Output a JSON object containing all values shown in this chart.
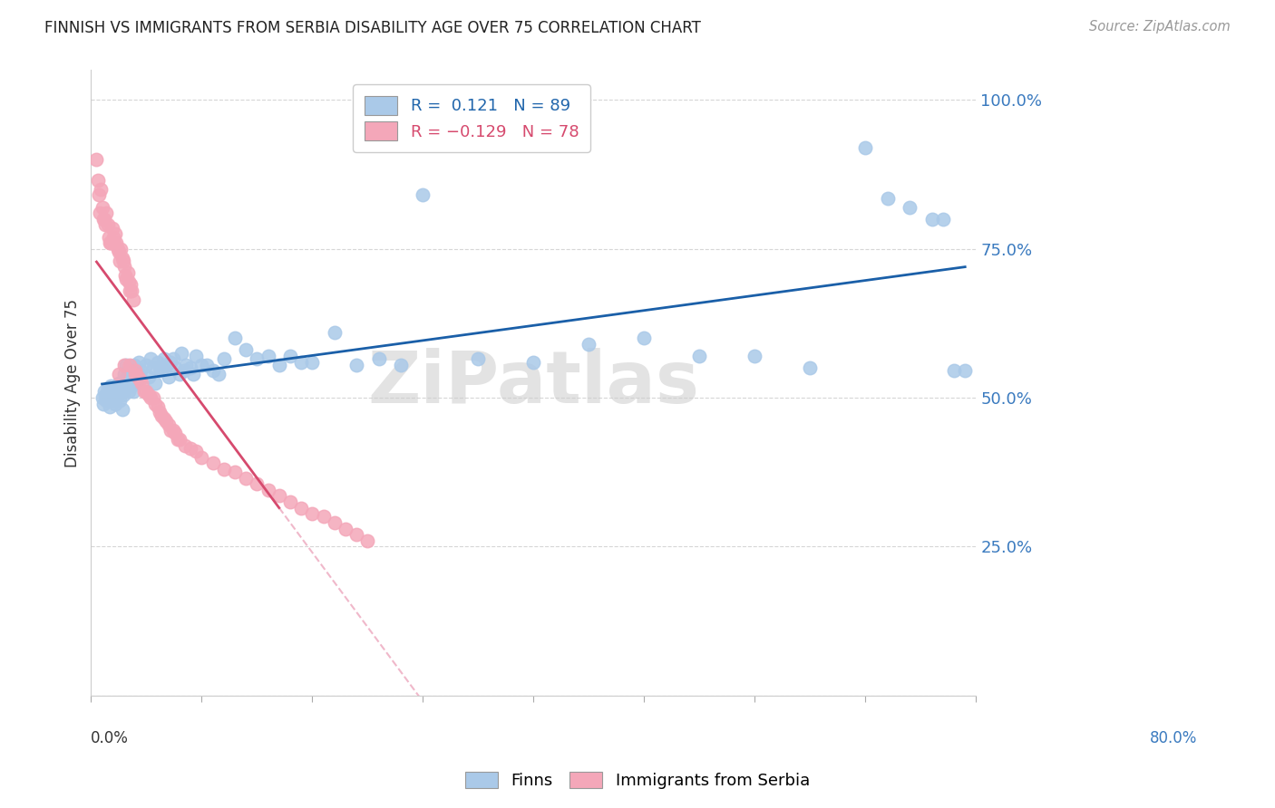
{
  "title": "FINNISH VS IMMIGRANTS FROM SERBIA DISABILITY AGE OVER 75 CORRELATION CHART",
  "source": "Source: ZipAtlas.com",
  "ylabel": "Disability Age Over 75",
  "xlim": [
    0.0,
    0.8
  ],
  "ylim": [
    0.0,
    1.05
  ],
  "yticks": [
    0.0,
    0.25,
    0.5,
    0.75,
    1.0
  ],
  "ytick_labels": [
    "",
    "25.0%",
    "50.0%",
    "75.0%",
    "100.0%"
  ],
  "xticks": [
    0.0,
    0.1,
    0.2,
    0.3,
    0.4,
    0.5,
    0.6,
    0.7,
    0.8
  ],
  "finns_color": "#aac9e8",
  "serbia_color": "#f4a7b9",
  "finns_line_color": "#1a5fa8",
  "serbia_line_color": "#d64a6e",
  "serbia_dashed_color": "#f0b8ca",
  "watermark": "ZiPatlas",
  "finns_x": [
    0.01,
    0.011,
    0.012,
    0.013,
    0.014,
    0.015,
    0.016,
    0.017,
    0.018,
    0.019,
    0.02,
    0.021,
    0.022,
    0.023,
    0.024,
    0.025,
    0.026,
    0.027,
    0.028,
    0.029,
    0.03,
    0.031,
    0.032,
    0.033,
    0.034,
    0.035,
    0.036,
    0.037,
    0.038,
    0.039,
    0.04,
    0.041,
    0.042,
    0.043,
    0.044,
    0.045,
    0.05,
    0.052,
    0.054,
    0.056,
    0.058,
    0.06,
    0.062,
    0.064,
    0.066,
    0.068,
    0.07,
    0.072,
    0.074,
    0.076,
    0.08,
    0.082,
    0.084,
    0.086,
    0.09,
    0.092,
    0.095,
    0.1,
    0.105,
    0.11,
    0.115,
    0.12,
    0.13,
    0.14,
    0.15,
    0.16,
    0.17,
    0.18,
    0.19,
    0.2,
    0.22,
    0.24,
    0.26,
    0.28,
    0.3,
    0.35,
    0.4,
    0.45,
    0.5,
    0.55,
    0.6,
    0.65,
    0.7,
    0.72,
    0.74,
    0.76,
    0.77,
    0.78,
    0.79
  ],
  "finns_y": [
    0.5,
    0.49,
    0.51,
    0.505,
    0.495,
    0.515,
    0.5,
    0.485,
    0.52,
    0.495,
    0.51,
    0.5,
    0.49,
    0.515,
    0.505,
    0.525,
    0.495,
    0.51,
    0.48,
    0.505,
    0.54,
    0.53,
    0.555,
    0.545,
    0.51,
    0.525,
    0.535,
    0.52,
    0.51,
    0.555,
    0.55,
    0.545,
    0.53,
    0.56,
    0.54,
    0.545,
    0.555,
    0.535,
    0.565,
    0.55,
    0.525,
    0.56,
    0.55,
    0.545,
    0.565,
    0.555,
    0.535,
    0.56,
    0.565,
    0.55,
    0.54,
    0.575,
    0.545,
    0.555,
    0.55,
    0.54,
    0.57,
    0.555,
    0.555,
    0.545,
    0.54,
    0.565,
    0.6,
    0.58,
    0.565,
    0.57,
    0.555,
    0.57,
    0.56,
    0.56,
    0.61,
    0.555,
    0.565,
    0.555,
    0.84,
    0.565,
    0.56,
    0.59,
    0.6,
    0.57,
    0.57,
    0.55,
    0.92,
    0.835,
    0.82,
    0.8,
    0.8,
    0.545,
    0.545
  ],
  "serbia_x": [
    0.005,
    0.006,
    0.007,
    0.008,
    0.009,
    0.01,
    0.011,
    0.012,
    0.013,
    0.014,
    0.015,
    0.016,
    0.017,
    0.018,
    0.019,
    0.02,
    0.021,
    0.022,
    0.023,
    0.024,
    0.025,
    0.026,
    0.027,
    0.028,
    0.029,
    0.03,
    0.031,
    0.032,
    0.033,
    0.034,
    0.035,
    0.036,
    0.037,
    0.038,
    0.04,
    0.042,
    0.044,
    0.046,
    0.048,
    0.05,
    0.052,
    0.054,
    0.056,
    0.058,
    0.06,
    0.062,
    0.064,
    0.066,
    0.068,
    0.07,
    0.072,
    0.074,
    0.076,
    0.078,
    0.08,
    0.085,
    0.09,
    0.095,
    0.1,
    0.11,
    0.12,
    0.13,
    0.14,
    0.15,
    0.16,
    0.17,
    0.18,
    0.19,
    0.2,
    0.21,
    0.22,
    0.23,
    0.24,
    0.25,
    0.04,
    0.035,
    0.03,
    0.025
  ],
  "serbia_y": [
    0.9,
    0.865,
    0.84,
    0.81,
    0.85,
    0.82,
    0.8,
    0.8,
    0.79,
    0.81,
    0.79,
    0.77,
    0.76,
    0.76,
    0.785,
    0.77,
    0.76,
    0.775,
    0.76,
    0.75,
    0.745,
    0.73,
    0.75,
    0.735,
    0.73,
    0.72,
    0.705,
    0.7,
    0.71,
    0.695,
    0.68,
    0.69,
    0.68,
    0.665,
    0.545,
    0.535,
    0.53,
    0.525,
    0.51,
    0.51,
    0.505,
    0.5,
    0.5,
    0.49,
    0.485,
    0.475,
    0.47,
    0.465,
    0.46,
    0.455,
    0.445,
    0.445,
    0.44,
    0.43,
    0.43,
    0.42,
    0.415,
    0.41,
    0.4,
    0.39,
    0.38,
    0.375,
    0.365,
    0.355,
    0.345,
    0.335,
    0.325,
    0.315,
    0.305,
    0.3,
    0.29,
    0.28,
    0.27,
    0.26,
    0.54,
    0.555,
    0.555,
    0.54
  ]
}
